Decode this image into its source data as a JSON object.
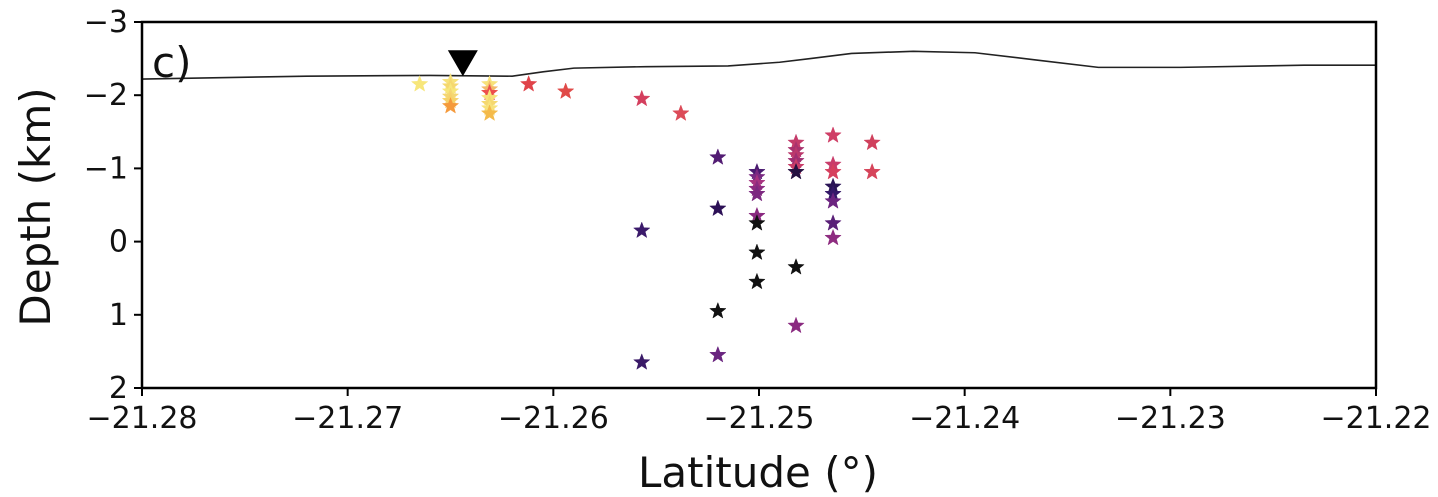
{
  "chart_data": {
    "type": "scatter",
    "panel_label": "c)",
    "title": "",
    "xlabel": "Latitude (°)",
    "ylabel": "Depth (km)",
    "xlim": [
      -21.28,
      -21.22
    ],
    "ylim": [
      2,
      -3
    ],
    "y_inverted": true,
    "xticks": [
      -21.28,
      -21.27,
      -21.26,
      -21.25,
      -21.24,
      -21.23,
      -21.22
    ],
    "xtick_labels": [
      "−21.28",
      "−21.27",
      "−21.26",
      "−21.25",
      "−21.24",
      "−21.23",
      "−21.22"
    ],
    "yticks": [
      -3,
      -2,
      -1,
      0,
      1,
      2
    ],
    "ytick_labels": [
      "−3",
      "−2",
      "−1",
      "0",
      "1",
      "2"
    ],
    "grid": false,
    "marker": "star",
    "station_marker": {
      "x": -21.2644,
      "y": -2.45,
      "shape": "inverted-triangle",
      "color": "#000000"
    },
    "topography_line": {
      "color": "#222222",
      "points": [
        [
          -21.28,
          -2.22
        ],
        [
          -21.272,
          -2.26
        ],
        [
          -21.266,
          -2.27
        ],
        [
          -21.262,
          -2.26
        ],
        [
          -21.2605,
          -2.32
        ],
        [
          -21.259,
          -2.37
        ],
        [
          -21.2555,
          -2.39
        ],
        [
          -21.2515,
          -2.4
        ],
        [
          -21.249,
          -2.45
        ],
        [
          -21.2475,
          -2.5
        ],
        [
          -21.2455,
          -2.57
        ],
        [
          -21.2425,
          -2.6
        ],
        [
          -21.2395,
          -2.58
        ],
        [
          -21.2365,
          -2.48
        ],
        [
          -21.2335,
          -2.38
        ],
        [
          -21.2295,
          -2.38
        ],
        [
          -21.2235,
          -2.41
        ],
        [
          -21.22,
          -2.41
        ]
      ]
    },
    "series": [
      {
        "points": [
          {
            "x": -21.2665,
            "y": -2.15,
            "color": "#f7e67a"
          },
          {
            "x": -21.265,
            "y": -2.18,
            "color": "#f7e27a"
          },
          {
            "x": -21.265,
            "y": -2.12,
            "color": "#f5d86f"
          },
          {
            "x": -21.265,
            "y": -2.05,
            "color": "#f7e67a"
          },
          {
            "x": -21.265,
            "y": -1.98,
            "color": "#f5d673"
          },
          {
            "x": -21.265,
            "y": -1.92,
            "color": "#f6d26a"
          },
          {
            "x": -21.265,
            "y": -1.85,
            "color": "#f59a3c"
          },
          {
            "x": -21.2631,
            "y": -2.15,
            "color": "#f7e27a"
          },
          {
            "x": -21.2631,
            "y": -2.08,
            "color": "#f3b86a"
          },
          {
            "x": -21.2631,
            "y": -2.03,
            "color": "#ed4e4e"
          },
          {
            "x": -21.2631,
            "y": -1.96,
            "color": "#f7e27a"
          },
          {
            "x": -21.2631,
            "y": -1.88,
            "color": "#f5d86f"
          },
          {
            "x": -21.2631,
            "y": -1.82,
            "color": "#f7e27a"
          },
          {
            "x": -21.2631,
            "y": -1.75,
            "color": "#f4ba4a"
          },
          {
            "x": -21.2612,
            "y": -2.15,
            "color": "#e0434a"
          },
          {
            "x": -21.2594,
            "y": -2.05,
            "color": "#e04a48"
          },
          {
            "x": -21.2557,
            "y": -1.95,
            "color": "#d43f5e"
          },
          {
            "x": -21.2538,
            "y": -1.75,
            "color": "#dc4b58"
          },
          {
            "x": -21.2557,
            "y": -0.15,
            "color": "#3b1a6b"
          },
          {
            "x": -21.2557,
            "y": 1.65,
            "color": "#3a1a68"
          },
          {
            "x": -21.252,
            "y": -1.15,
            "color": "#521c73"
          },
          {
            "x": -21.252,
            "y": -0.45,
            "color": "#2c1056"
          },
          {
            "x": -21.252,
            "y": 0.95,
            "color": "#111111"
          },
          {
            "x": -21.252,
            "y": 1.55,
            "color": "#6a2580"
          },
          {
            "x": -21.2501,
            "y": -0.95,
            "color": "#4a1a70"
          },
          {
            "x": -21.2501,
            "y": -0.88,
            "color": "#7a2a82"
          },
          {
            "x": -21.2501,
            "y": -0.8,
            "color": "#a83380"
          },
          {
            "x": -21.2501,
            "y": -0.72,
            "color": "#8c2a80"
          },
          {
            "x": -21.2501,
            "y": -0.65,
            "color": "#7c2880"
          },
          {
            "x": -21.2501,
            "y": -0.35,
            "color": "#8a2880"
          },
          {
            "x": -21.2501,
            "y": -0.25,
            "color": "#111111"
          },
          {
            "x": -21.2501,
            "y": 0.15,
            "color": "#111111"
          },
          {
            "x": -21.2501,
            "y": 0.55,
            "color": "#111111"
          },
          {
            "x": -21.2482,
            "y": -1.35,
            "color": "#c43b6a"
          },
          {
            "x": -21.2482,
            "y": -1.25,
            "color": "#a8326e"
          },
          {
            "x": -21.2482,
            "y": -1.18,
            "color": "#bb386c"
          },
          {
            "x": -21.2482,
            "y": -1.1,
            "color": "#9e2e72"
          },
          {
            "x": -21.2482,
            "y": -1.02,
            "color": "#c93c68"
          },
          {
            "x": -21.2482,
            "y": -0.95,
            "color": "#241040"
          },
          {
            "x": -21.2482,
            "y": 0.35,
            "color": "#111111"
          },
          {
            "x": -21.2482,
            "y": 1.15,
            "color": "#8a2a80"
          },
          {
            "x": -21.2464,
            "y": -1.45,
            "color": "#cf3e66"
          },
          {
            "x": -21.2464,
            "y": -1.05,
            "color": "#c93c6a"
          },
          {
            "x": -21.2464,
            "y": -0.95,
            "color": "#d6405e"
          },
          {
            "x": -21.2464,
            "y": -0.75,
            "color": "#2a1456"
          },
          {
            "x": -21.2464,
            "y": -0.65,
            "color": "#341868"
          },
          {
            "x": -21.2464,
            "y": -0.55,
            "color": "#6c2480"
          },
          {
            "x": -21.2464,
            "y": -0.25,
            "color": "#5a2078"
          },
          {
            "x": -21.2464,
            "y": -0.05,
            "color": "#8e2c80"
          },
          {
            "x": -21.2445,
            "y": -1.35,
            "color": "#d0405c"
          },
          {
            "x": -21.2445,
            "y": -0.95,
            "color": "#d6445a"
          }
        ]
      }
    ]
  }
}
